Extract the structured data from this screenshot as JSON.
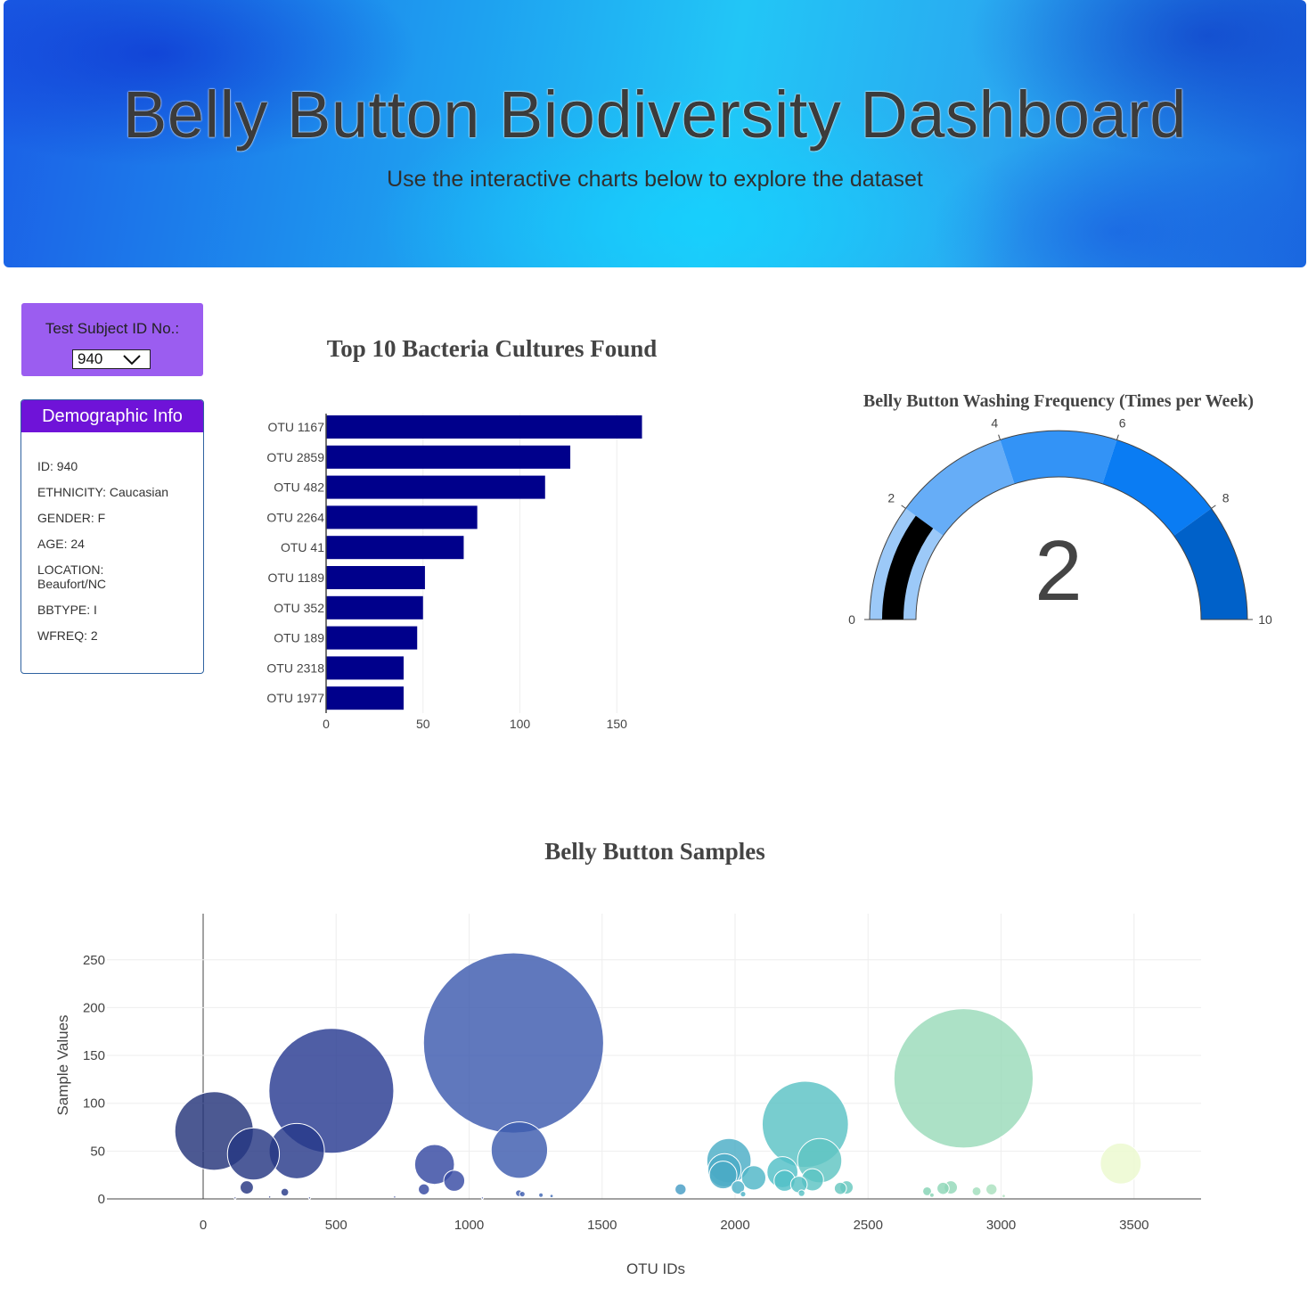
{
  "header": {
    "title": "Belly Button Biodiversity Dashboard",
    "subtitle": "Use the interactive charts below to explore the dataset"
  },
  "selector": {
    "label": "Test Subject ID No.:",
    "selected": "940"
  },
  "demographics": {
    "title": "Demographic Info",
    "items": [
      "ID: 940",
      "ETHNICITY: Caucasian",
      "GENDER: F",
      "AGE: 24",
      "LOCATION: Beaufort/NC",
      "BBTYPE: I",
      "WFREQ: 2"
    ]
  },
  "colors": {
    "bar": "#00008b",
    "selector_bg": "#9b5df0",
    "demo_header": "#6f13d8",
    "gauge_bands": [
      "#9cc9f8",
      "#66adf7",
      "#3393f6",
      "#0a7cf3",
      "#0061c9"
    ],
    "gauge_needle": "#000000"
  },
  "chart_data": [
    {
      "type": "bar",
      "orientation": "horizontal",
      "title": "Top 10 Bacteria Cultures Found",
      "categories": [
        "OTU 1167",
        "OTU 2859",
        "OTU 482",
        "OTU 2264",
        "OTU 41",
        "OTU 1189",
        "OTU 352",
        "OTU 189",
        "OTU 2318",
        "OTU 1977"
      ],
      "values": [
        163,
        126,
        113,
        78,
        71,
        51,
        50,
        47,
        40,
        40
      ],
      "xlim": [
        0,
        172
      ],
      "xticks": [
        0,
        50,
        100,
        150
      ],
      "grid": true
    },
    {
      "type": "gauge",
      "title": "Belly Button Washing Frequency (Times per Week)",
      "value": 2,
      "value_label": "2",
      "range": [
        0,
        10
      ],
      "steps": [
        [
          0,
          2
        ],
        [
          2,
          4
        ],
        [
          4,
          6
        ],
        [
          6,
          8
        ],
        [
          8,
          10
        ]
      ],
      "ticks": [
        0,
        2,
        4,
        6,
        8,
        10
      ]
    },
    {
      "type": "scatter",
      "title": "Belly Button Samples",
      "xlabel": "OTU IDs",
      "ylabel": "Sample Values",
      "xlim": [
        -400,
        3760
      ],
      "ylim": [
        -10,
        295
      ],
      "xticks": [
        0,
        500,
        1000,
        1500,
        2000,
        2500,
        3000,
        3500
      ],
      "yticks": [
        0,
        50,
        100,
        150,
        200,
        250
      ],
      "grid": true,
      "colorscale": "YlGnBu reversed",
      "points": [
        {
          "x": 41,
          "y": 71
        },
        {
          "x": 189,
          "y": 47
        },
        {
          "x": 352,
          "y": 50
        },
        {
          "x": 482,
          "y": 113
        },
        {
          "x": 1167,
          "y": 163
        },
        {
          "x": 1189,
          "y": 51
        },
        {
          "x": 870,
          "y": 36
        },
        {
          "x": 944,
          "y": 19
        },
        {
          "x": 164,
          "y": 12
        },
        {
          "x": 307,
          "y": 7
        },
        {
          "x": 830,
          "y": 10
        },
        {
          "x": 1795,
          "y": 10
        },
        {
          "x": 1977,
          "y": 40
        },
        {
          "x": 1960,
          "y": 30
        },
        {
          "x": 1955,
          "y": 25
        },
        {
          "x": 2011,
          "y": 12
        },
        {
          "x": 2070,
          "y": 22
        },
        {
          "x": 2178,
          "y": 28
        },
        {
          "x": 2186,
          "y": 19
        },
        {
          "x": 2264,
          "y": 78
        },
        {
          "x": 2318,
          "y": 40
        },
        {
          "x": 2291,
          "y": 20
        },
        {
          "x": 2240,
          "y": 15
        },
        {
          "x": 2419,
          "y": 12
        },
        {
          "x": 2396,
          "y": 11
        },
        {
          "x": 2859,
          "y": 126
        },
        {
          "x": 2811,
          "y": 12
        },
        {
          "x": 2782,
          "y": 11
        },
        {
          "x": 2964,
          "y": 10
        },
        {
          "x": 2722,
          "y": 8
        },
        {
          "x": 2908,
          "y": 8
        },
        {
          "x": 3450,
          "y": 37
        },
        {
          "x": 1187,
          "y": 6
        },
        {
          "x": 1200,
          "y": 5
        },
        {
          "x": 1270,
          "y": 4
        },
        {
          "x": 1310,
          "y": 3
        },
        {
          "x": 2030,
          "y": 5
        },
        {
          "x": 2250,
          "y": 6
        },
        {
          "x": 2740,
          "y": 4
        },
        {
          "x": 3010,
          "y": 3
        },
        {
          "x": 120,
          "y": 1
        },
        {
          "x": 250,
          "y": 2
        },
        {
          "x": 400,
          "y": 1
        },
        {
          "x": 720,
          "y": 2
        },
        {
          "x": 1050,
          "y": 1
        }
      ]
    }
  ]
}
